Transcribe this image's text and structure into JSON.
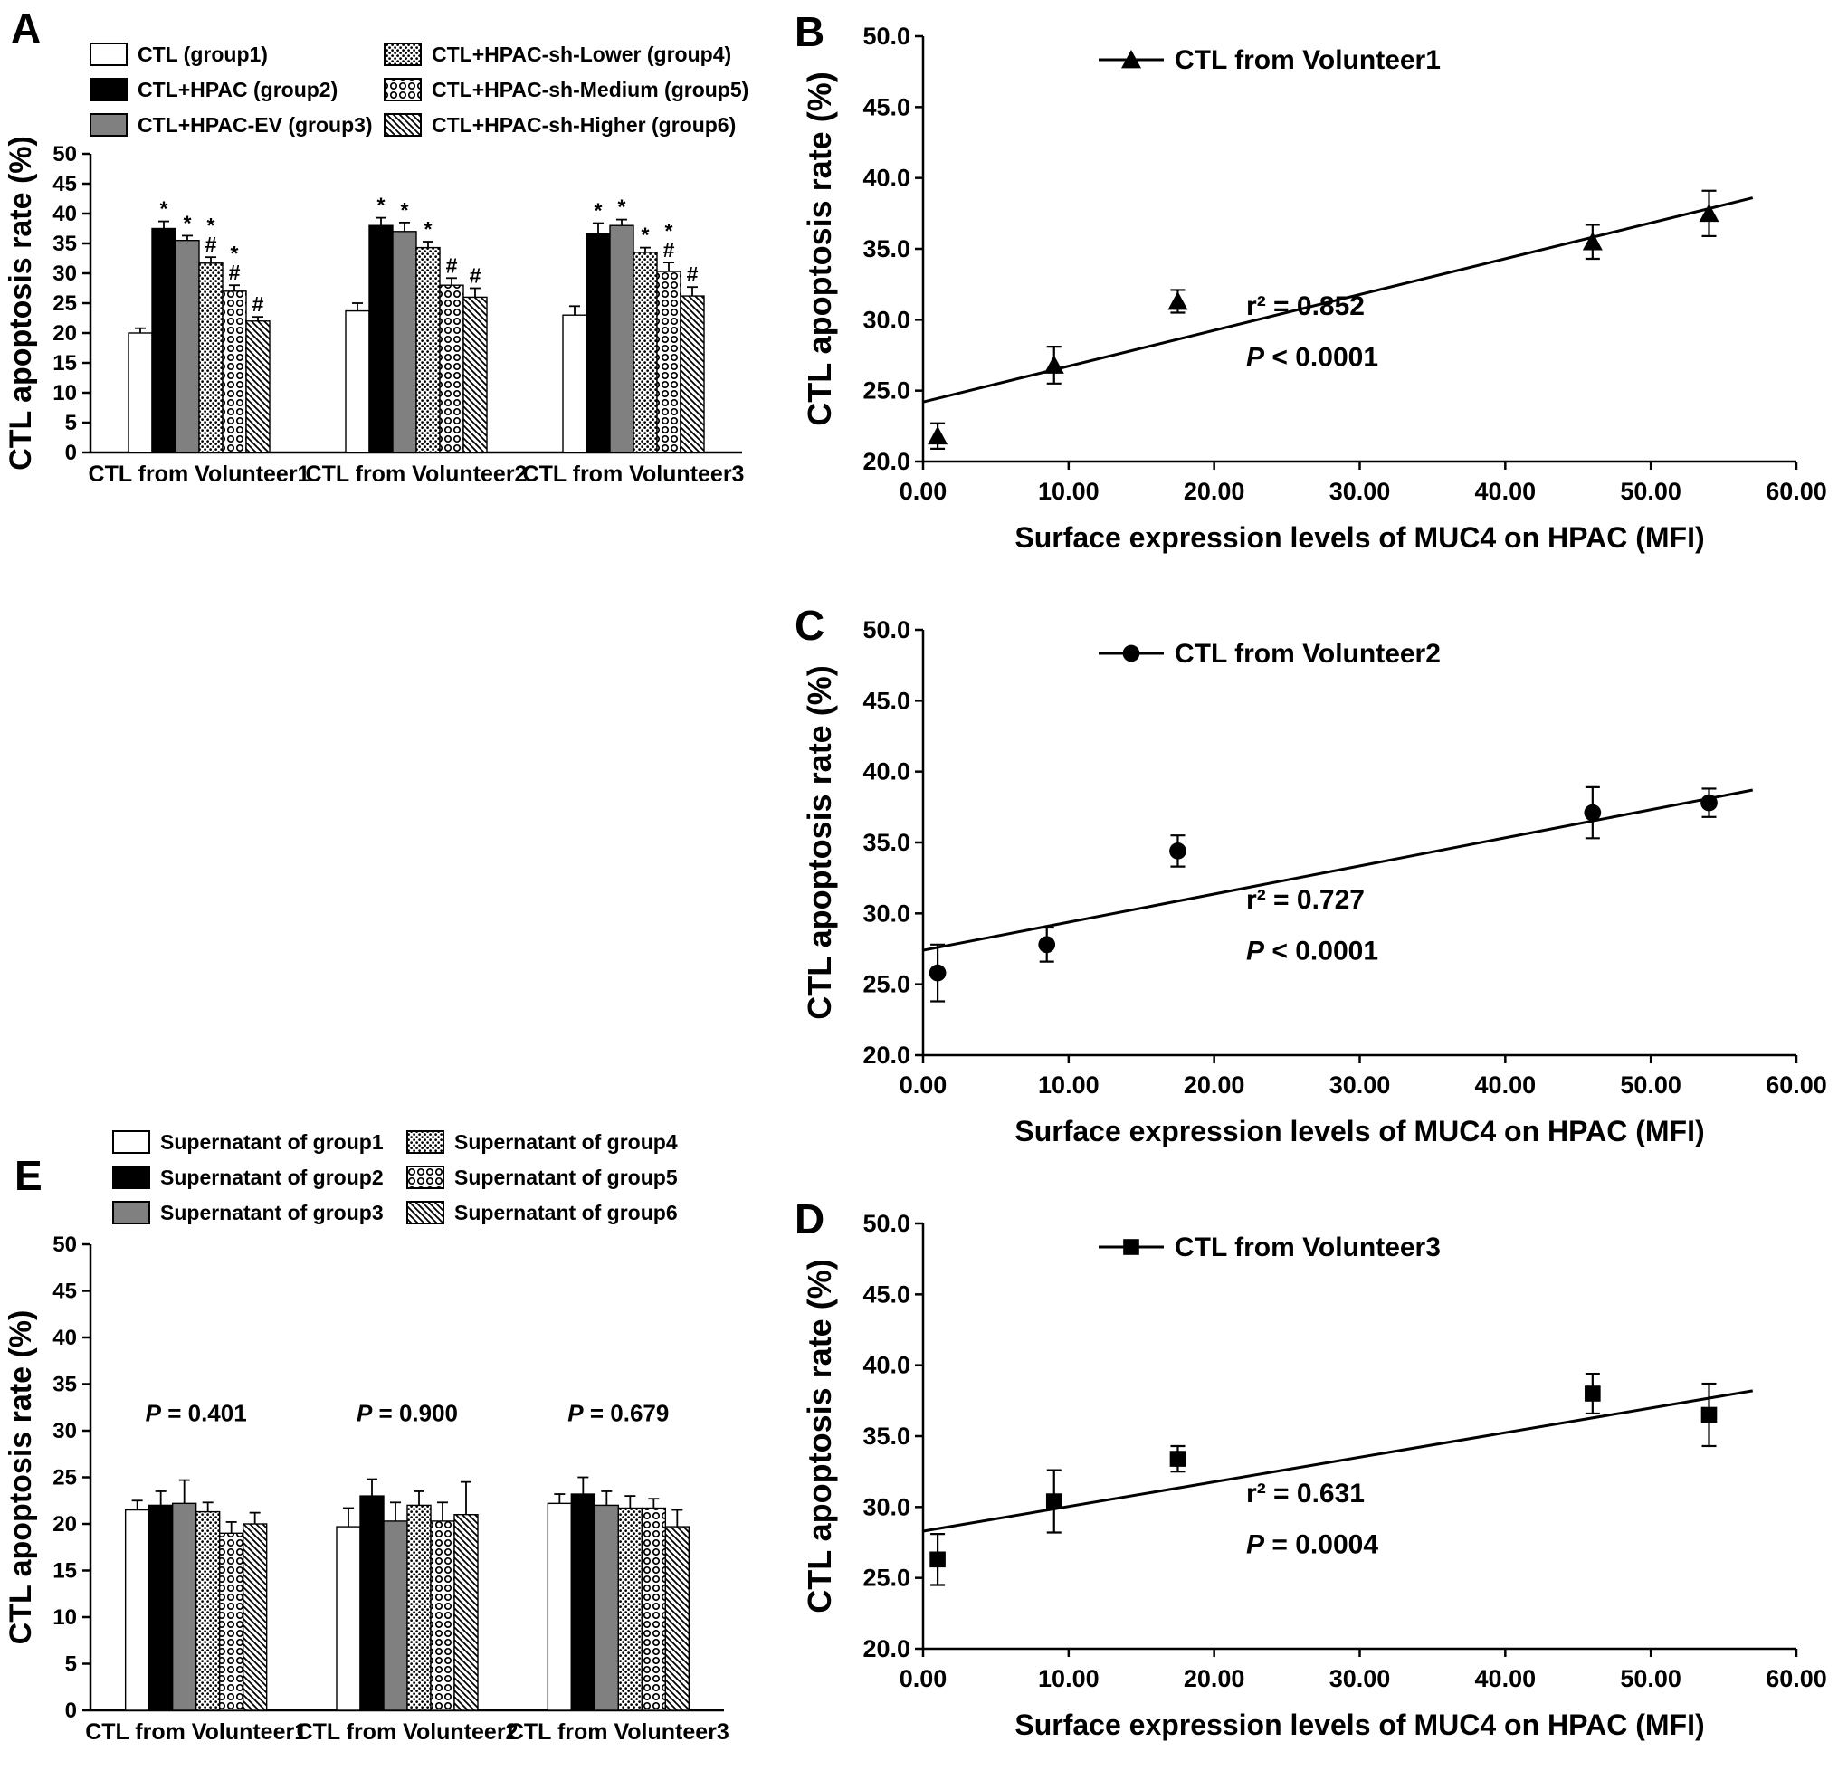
{
  "panel_labels": {
    "a": "A",
    "b": "B",
    "c": "C",
    "d": "D",
    "e": "E"
  },
  "colors": {
    "bar_black": "#000000",
    "bar_gray": "#808080",
    "bar_white": "#ffffff",
    "axis": "#000000"
  },
  "chart_data": [
    {
      "id": "chart-a",
      "type": "bar",
      "panel": "A",
      "ylabel": "CTL apoptosis rate (%)",
      "ylim": [
        0,
        50
      ],
      "ystep": 5,
      "categories": [
        "CTL from Volunteer1",
        "CTL from Volunteer2",
        "CTL from Volunteer3"
      ],
      "legend": [
        {
          "label": "CTL (group1)",
          "pattern": "white"
        },
        {
          "label": "CTL+HPAC (group2)",
          "pattern": "black"
        },
        {
          "label": "CTL+HPAC-EV (group3)",
          "pattern": "gray"
        },
        {
          "label": "CTL+HPAC-sh-Lower (group4)",
          "pattern": "dots"
        },
        {
          "label": "CTL+HPAC-sh-Medium (group5)",
          "pattern": "rings"
        },
        {
          "label": "CTL+HPAC-sh-Higher (group6)",
          "pattern": "diag"
        }
      ],
      "series": [
        {
          "name": "CTL (group1)",
          "pattern": "white",
          "values": [
            20.0,
            23.7,
            23.0
          ],
          "errors": [
            0.8,
            1.3,
            1.5
          ],
          "annotations": [
            "",
            "",
            ""
          ]
        },
        {
          "name": "CTL+HPAC (group2)",
          "pattern": "black",
          "values": [
            37.5,
            38.0,
            36.6
          ],
          "errors": [
            1.2,
            1.3,
            1.8
          ],
          "annotations": [
            "*",
            "*",
            "*"
          ]
        },
        {
          "name": "CTL+HPAC-EV (group3)",
          "pattern": "gray",
          "values": [
            35.5,
            37.0,
            38.0
          ],
          "errors": [
            0.8,
            1.5,
            1.0
          ],
          "annotations": [
            "*",
            "*",
            "*"
          ]
        },
        {
          "name": "CTL+HPAC-sh-Lower (group4)",
          "pattern": "dots",
          "values": [
            31.7,
            34.3,
            33.5
          ],
          "errors": [
            1.0,
            1.0,
            0.8
          ],
          "annotations": [
            "*#",
            "*",
            "*"
          ]
        },
        {
          "name": "CTL+HPAC-sh-Medium (group5)",
          "pattern": "rings",
          "values": [
            27.0,
            28.0,
            30.3
          ],
          "errors": [
            1.0,
            1.2,
            1.5
          ],
          "annotations": [
            "*#",
            "#",
            "*#"
          ]
        },
        {
          "name": "CTL+HPAC-sh-Higher (group6)",
          "pattern": "diag",
          "values": [
            22.0,
            26.0,
            26.2
          ],
          "errors": [
            0.7,
            1.5,
            1.5
          ],
          "annotations": [
            "#",
            "#",
            "#"
          ]
        }
      ]
    },
    {
      "id": "chart-b",
      "type": "scatter",
      "panel": "B",
      "legend_label": "CTL from Volunteer1",
      "marker": "triangle",
      "xlabel": "Surface expression levels of MUC4 on HPAC (MFI)",
      "ylabel": "CTL apoptosis rate (%)",
      "xlim": [
        0,
        60
      ],
      "ylim": [
        20,
        50
      ],
      "xticks": {
        "values": [
          0,
          10,
          20,
          30,
          40,
          50,
          60
        ],
        "labels": [
          "0.00",
          "10.00",
          "20.00",
          "30.00",
          "40.00",
          "50.00",
          "60.00"
        ]
      },
      "yticks": {
        "values": [
          20,
          25,
          30,
          35,
          40,
          45,
          50
        ],
        "labels": [
          "20.0",
          "25.0",
          "30.0",
          "35.0",
          "40.0",
          "45.0",
          "50.0"
        ]
      },
      "points": [
        {
          "x": 1.0,
          "y": 21.8,
          "err": 0.9
        },
        {
          "x": 9.0,
          "y": 26.8,
          "err": 1.3
        },
        {
          "x": 17.5,
          "y": 31.3,
          "err": 0.8
        },
        {
          "x": 46.0,
          "y": 35.5,
          "err": 1.2
        },
        {
          "x": 54.0,
          "y": 37.5,
          "err": 1.6
        }
      ],
      "fit_line": {
        "x0": 0,
        "y0": 24.2,
        "x1": 57,
        "y1": 38.6
      },
      "stats": [
        "r² = 0.852",
        "P < 0.0001"
      ]
    },
    {
      "id": "chart-c",
      "type": "scatter",
      "panel": "C",
      "legend_label": "CTL from Volunteer2",
      "marker": "circle",
      "xlabel": "Surface expression levels of MUC4 on HPAC (MFI)",
      "ylabel": "CTL apoptosis rate (%)",
      "xlim": [
        0,
        60
      ],
      "ylim": [
        20,
        50
      ],
      "xticks": {
        "values": [
          0,
          10,
          20,
          30,
          40,
          50,
          60
        ],
        "labels": [
          "0.00",
          "10.00",
          "20.00",
          "30.00",
          "40.00",
          "50.00",
          "60.00"
        ]
      },
      "yticks": {
        "values": [
          20,
          25,
          30,
          35,
          40,
          45,
          50
        ],
        "labels": [
          "20.0",
          "25.0",
          "30.0",
          "35.0",
          "40.0",
          "45.0",
          "50.0"
        ]
      },
      "points": [
        {
          "x": 1.0,
          "y": 25.8,
          "err": 2.0
        },
        {
          "x": 8.5,
          "y": 27.8,
          "err": 1.2
        },
        {
          "x": 17.5,
          "y": 34.4,
          "err": 1.1
        },
        {
          "x": 46.0,
          "y": 37.1,
          "err": 1.8
        },
        {
          "x": 54.0,
          "y": 37.8,
          "err": 1.0
        }
      ],
      "fit_line": {
        "x0": 0,
        "y0": 27.4,
        "x1": 57,
        "y1": 38.7
      },
      "stats": [
        "r² = 0.727",
        "P < 0.0001"
      ]
    },
    {
      "id": "chart-d",
      "type": "scatter",
      "panel": "D",
      "legend_label": "CTL from Volunteer3",
      "marker": "square",
      "xlabel": "Surface expression levels of MUC4 on HPAC (MFI)",
      "ylabel": "CTL apoptosis rate (%)",
      "xlim": [
        0,
        60
      ],
      "ylim": [
        20,
        50
      ],
      "xticks": {
        "values": [
          0,
          10,
          20,
          30,
          40,
          50,
          60
        ],
        "labels": [
          "0.00",
          "10.00",
          "20.00",
          "30.00",
          "40.00",
          "50.00",
          "60.00"
        ]
      },
      "yticks": {
        "values": [
          20,
          25,
          30,
          35,
          40,
          45,
          50
        ],
        "labels": [
          "20.0",
          "25.0",
          "30.0",
          "35.0",
          "40.0",
          "45.0",
          "50.0"
        ]
      },
      "points": [
        {
          "x": 1.0,
          "y": 26.3,
          "err": 1.8
        },
        {
          "x": 9.0,
          "y": 30.4,
          "err": 2.2
        },
        {
          "x": 17.5,
          "y": 33.4,
          "err": 0.9
        },
        {
          "x": 46.0,
          "y": 38.0,
          "err": 1.4
        },
        {
          "x": 54.0,
          "y": 36.5,
          "err": 2.2
        }
      ],
      "fit_line": {
        "x0": 0,
        "y0": 28.3,
        "x1": 57,
        "y1": 38.2
      },
      "stats": [
        "r² = 0.631",
        "P = 0.0004"
      ]
    },
    {
      "id": "chart-e",
      "type": "bar",
      "panel": "E",
      "ylabel": "CTL apoptosis rate (%)",
      "ylim": [
        0,
        50
      ],
      "ystep": 5,
      "categories": [
        "CTL from Volunteer1",
        "CTL from Volunteer2",
        "CTL from Volunteer3"
      ],
      "group_labels": [
        "P = 0.401",
        "P = 0.900",
        "P = 0.679"
      ],
      "legend": [
        {
          "label": "Supernatant of group1",
          "pattern": "white"
        },
        {
          "label": "Supernatant of group2",
          "pattern": "black"
        },
        {
          "label": "Supernatant of group3",
          "pattern": "gray"
        },
        {
          "label": "Supernatant of group4",
          "pattern": "dots"
        },
        {
          "label": "Supernatant of group5",
          "pattern": "rings"
        },
        {
          "label": "Supernatant of group6",
          "pattern": "diag"
        }
      ],
      "series": [
        {
          "name": "Supernatant of group1",
          "pattern": "white",
          "values": [
            21.5,
            19.7,
            22.2
          ],
          "errors": [
            1.0,
            2.0,
            1.0
          ],
          "annotations": [
            "",
            "",
            ""
          ]
        },
        {
          "name": "Supernatant of group2",
          "pattern": "black",
          "values": [
            22.0,
            23.0,
            23.2
          ],
          "errors": [
            1.5,
            1.8,
            1.8
          ],
          "annotations": [
            "",
            "",
            ""
          ]
        },
        {
          "name": "Supernatant of group3",
          "pattern": "gray",
          "values": [
            22.2,
            20.3,
            22.0
          ],
          "errors": [
            2.5,
            2.0,
            1.5
          ],
          "annotations": [
            "",
            "",
            ""
          ]
        },
        {
          "name": "Supernatant of group4",
          "pattern": "dots",
          "values": [
            21.3,
            22.0,
            21.7
          ],
          "errors": [
            1.0,
            1.5,
            1.3
          ],
          "annotations": [
            "",
            "",
            ""
          ]
        },
        {
          "name": "Supernatant of group5",
          "pattern": "rings",
          "values": [
            19.0,
            20.3,
            21.7
          ],
          "errors": [
            1.2,
            2.0,
            1.0
          ],
          "annotations": [
            "",
            "",
            ""
          ]
        },
        {
          "name": "Supernatant of group6",
          "pattern": "diag",
          "values": [
            20.0,
            21.0,
            19.7
          ],
          "errors": [
            1.2,
            3.5,
            1.8
          ],
          "annotations": [
            "",
            "",
            ""
          ]
        }
      ]
    }
  ]
}
